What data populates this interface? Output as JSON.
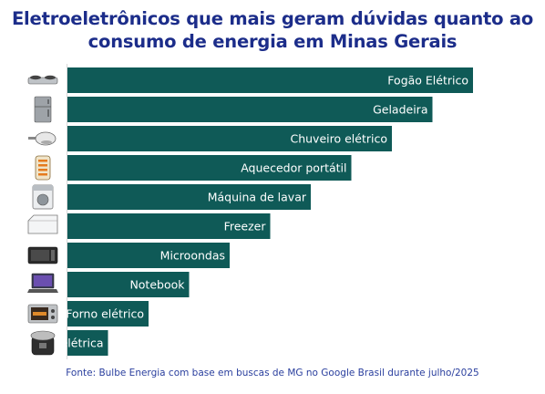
{
  "chart_data": {
    "type": "bar",
    "orientation": "horizontal",
    "title": "Eletroeletrônicos que mais geram dúvidas quanto ao consumo de energia em Minas Gerais",
    "title_lines": [
      "Eletroeletrônicos que mais geram dúvidas quanto ao",
      "consumo de energia em Minas Gerais"
    ],
    "categories": [
      "Fogão Elétrico",
      "Geladeira",
      "Chuveiro elétrico",
      "Aquecedor portátil",
      "Máquina de lavar",
      "Freezer",
      "Microondas",
      "Notebook",
      "Forno elétrico",
      "Panela de pressão elétrica"
    ],
    "values": [
      10,
      9,
      8,
      7,
      6,
      5,
      4,
      3,
      2,
      1
    ],
    "icons": [
      "cooktop-icon",
      "refrigerator-icon",
      "shower-icon",
      "heater-icon",
      "washing-machine-icon",
      "freezer-icon",
      "microwave-icon",
      "laptop-icon",
      "oven-icon",
      "pressure-cooker-icon"
    ],
    "bar_color": "#0f5a57",
    "title_color": "#1c2d8a",
    "source": "Fonte: Bulbe Energia com base em buscas de MG no Google Brasil durante julho/2025",
    "xlabel": "",
    "ylabel": ""
  }
}
